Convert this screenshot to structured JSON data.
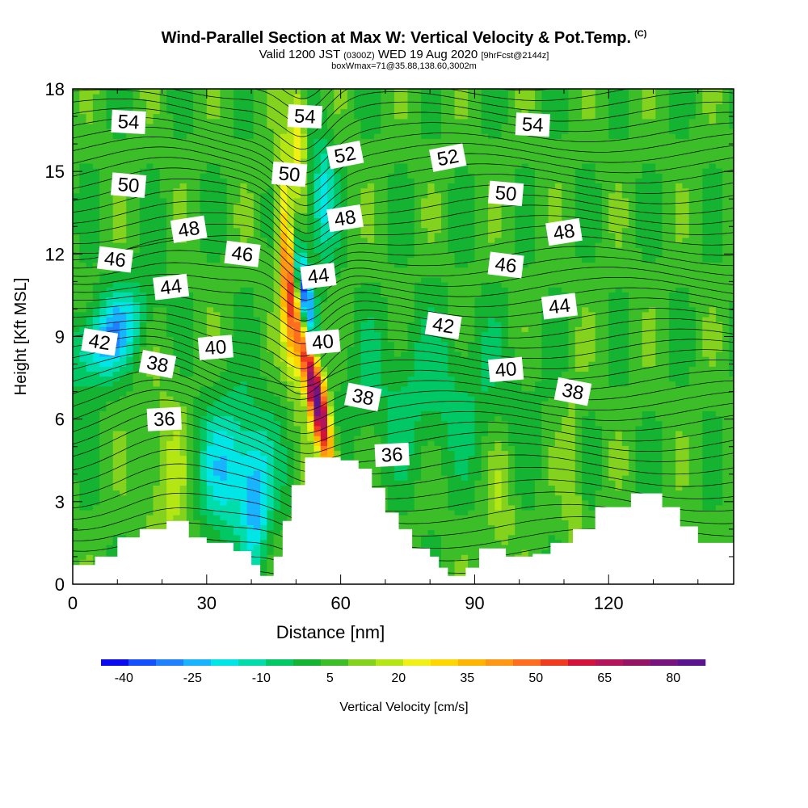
{
  "title": {
    "main": "Wind-Parallel Section at Max W: Vertical Velocity & Pot.Temp.",
    "copyright": "(C)",
    "valid_prefix": "Valid 1200 JST",
    "valid_utc": "(0300Z)",
    "valid_date": "WED 19 Aug 2020",
    "forecast": "[9hrFcst@2144z]",
    "box_info": "boxWmax=71@35.88,138.60,3002m"
  },
  "chart_data": {
    "type": "heatmap",
    "xlabel": "Distance [nm]",
    "ylabel": "Height [Kft MSL]",
    "xlim": [
      0,
      148
    ],
    "ylim": [
      0,
      18
    ],
    "x_ticks": [
      "0",
      "30",
      "60",
      "90",
      "120"
    ],
    "x_tick_values": [
      0,
      30,
      60,
      90,
      120
    ],
    "y_ticks": [
      "0",
      "3",
      "6",
      "9",
      "12",
      "15",
      "18"
    ],
    "y_tick_values": [
      0,
      3,
      6,
      9,
      12,
      15,
      18
    ],
    "colorbar": {
      "label": "Vertical Velocity [cm/s]",
      "ticks": [
        "-40",
        "-25",
        "-10",
        "5",
        "20",
        "35",
        "50",
        "65",
        "80"
      ],
      "tick_values": [
        -40,
        -25,
        -10,
        5,
        20,
        35,
        50,
        65,
        80
      ],
      "colors": [
        "#0a0af0",
        "#1450ff",
        "#1e82ff",
        "#19b4ff",
        "#00e6e6",
        "#00dcaa",
        "#00c864",
        "#14b432",
        "#3cbe28",
        "#82d21e",
        "#b4e614",
        "#f0f014",
        "#ffd700",
        "#ffb400",
        "#ff9614",
        "#ff6e1e",
        "#f03c1e",
        "#d2143c",
        "#b4145a",
        "#961464",
        "#78147d",
        "#5a1490"
      ]
    },
    "terrain": [
      [
        0,
        0.7
      ],
      [
        5,
        1.0
      ],
      [
        10,
        1.7
      ],
      [
        15,
        2.0
      ],
      [
        21,
        2.3
      ],
      [
        26,
        1.7
      ],
      [
        30,
        1.5
      ],
      [
        36,
        1.2
      ],
      [
        40,
        0.7
      ],
      [
        42,
        0.3
      ],
      [
        45,
        1.0
      ],
      [
        47,
        2.3
      ],
      [
        49,
        3.6
      ],
      [
        52,
        4.6
      ],
      [
        60,
        4.5
      ],
      [
        64,
        4.2
      ],
      [
        67,
        3.5
      ],
      [
        70,
        2.6
      ],
      [
        73,
        2.0
      ],
      [
        76,
        1.3
      ],
      [
        80,
        1.0
      ],
      [
        82,
        0.6
      ],
      [
        84,
        0.3
      ],
      [
        88,
        0.6
      ],
      [
        91,
        1.3
      ],
      [
        97,
        1.0
      ],
      [
        103,
        1.1
      ],
      [
        107,
        1.5
      ],
      [
        112,
        2.0
      ],
      [
        117,
        2.8
      ],
      [
        125,
        3.3
      ],
      [
        132,
        2.8
      ],
      [
        136,
        2.1
      ],
      [
        140,
        1.5
      ],
      [
        148,
        1.6
      ]
    ],
    "theta_contours": [
      {
        "value": 36,
        "labels": [
          [
            20.5,
            6.0
          ],
          [
            71.5,
            4.7
          ]
        ]
      },
      {
        "value": 38,
        "labels": [
          [
            19,
            8.0
          ],
          [
            65,
            6.8
          ],
          [
            112,
            7.0
          ]
        ]
      },
      {
        "value": 40,
        "labels": [
          [
            32,
            8.6
          ],
          [
            56,
            8.8
          ],
          [
            97,
            7.8
          ]
        ]
      },
      {
        "value": 42,
        "labels": [
          [
            6,
            8.8
          ],
          [
            83,
            9.4
          ]
        ]
      },
      {
        "value": 44,
        "labels": [
          [
            22,
            10.8
          ],
          [
            55,
            11.2
          ],
          [
            109,
            10.1
          ]
        ]
      },
      {
        "value": 46,
        "labels": [
          [
            9.5,
            11.8
          ],
          [
            38,
            12.0
          ],
          [
            97,
            11.6
          ]
        ]
      },
      {
        "value": 48,
        "labels": [
          [
            26,
            12.9
          ],
          [
            61,
            13.3
          ],
          [
            110,
            12.8
          ]
        ]
      },
      {
        "value": 50,
        "labels": [
          [
            12.5,
            14.5
          ],
          [
            48.5,
            14.9
          ],
          [
            97,
            14.2
          ]
        ]
      },
      {
        "value": 52,
        "labels": [
          [
            61,
            15.6
          ],
          [
            84,
            15.5
          ]
        ]
      },
      {
        "value": 54,
        "labels": [
          [
            12.5,
            16.8
          ],
          [
            52,
            17.0
          ],
          [
            103,
            16.7
          ]
        ]
      }
    ],
    "velocity_features": [
      {
        "name": "updraft-core",
        "x": 55.5,
        "y": 7.2,
        "value": 80
      },
      {
        "name": "updraft-upper",
        "x": 48.5,
        "y": 11.0,
        "value": 35
      },
      {
        "name": "downdraft-band",
        "x": 52,
        "y": 10.5,
        "value": -40
      },
      {
        "name": "downdraft-west",
        "x": 8,
        "y": 9.0,
        "value": -25
      },
      {
        "name": "downdraft-low",
        "x": 35,
        "y": 4.0,
        "value": -20
      }
    ]
  }
}
